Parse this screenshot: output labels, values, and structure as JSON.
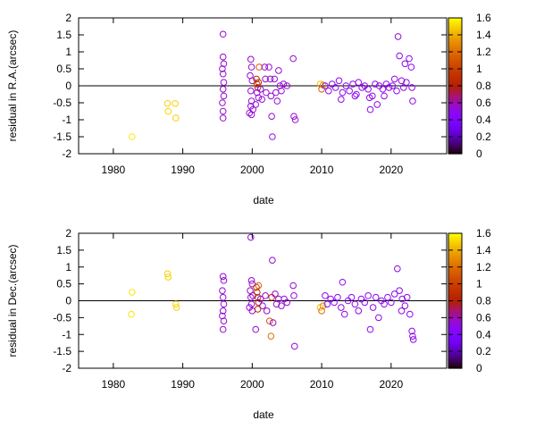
{
  "chart_data": [
    {
      "type": "scatter",
      "xlabel": "date",
      "ylabel": "residual in R.A.(arcsec)",
      "xlim": [
        1975,
        2028
      ],
      "ylim": [
        -2,
        2
      ],
      "xticks": [
        1980,
        1990,
        2000,
        2010,
        2020
      ],
      "yticks": [
        -2,
        -1.5,
        -1,
        -0.5,
        0,
        0.5,
        1,
        1.5,
        2
      ],
      "grid": false,
      "zero_line": true,
      "marker": "open-circle",
      "colorbar": {
        "min": 0,
        "max": 1.6,
        "ticks": [
          0,
          0.2,
          0.4,
          0.6,
          0.8,
          1,
          1.2,
          1.4,
          1.6
        ],
        "colormap": "gnuplot"
      },
      "points": [
        [
          1982.7,
          -1.5,
          1.55
        ],
        [
          1987.8,
          -0.52,
          1.5
        ],
        [
          1987.9,
          -0.75,
          1.5
        ],
        [
          1988.9,
          -0.52,
          1.5
        ],
        [
          1989.0,
          -0.95,
          1.5
        ],
        [
          1995.8,
          1.52,
          0.55
        ],
        [
          1995.8,
          0.85,
          0.55
        ],
        [
          1995.9,
          0.65,
          0.55
        ],
        [
          1995.7,
          0.5,
          0.55
        ],
        [
          1995.8,
          0.35,
          0.55
        ],
        [
          1995.9,
          0.1,
          0.55
        ],
        [
          1995.8,
          -0.1,
          0.55
        ],
        [
          1995.9,
          -0.3,
          0.55
        ],
        [
          1995.7,
          -0.5,
          0.55
        ],
        [
          1995.8,
          -0.75,
          0.55
        ],
        [
          1995.8,
          -0.95,
          0.55
        ],
        [
          1999.8,
          0.78,
          0.55
        ],
        [
          1999.9,
          0.55,
          0.55
        ],
        [
          1999.7,
          0.3,
          0.55
        ],
        [
          2000.0,
          0.15,
          0.55
        ],
        [
          1999.8,
          -0.15,
          0.55
        ],
        [
          1999.9,
          -0.45,
          0.55
        ],
        [
          1999.8,
          -0.6,
          0.55
        ],
        [
          1999.9,
          -0.85,
          0.55
        ],
        [
          2000.1,
          -0.7,
          0.55
        ],
        [
          1999.6,
          -0.8,
          0.55
        ],
        [
          2000.6,
          0.2,
          0.9
        ],
        [
          2000.7,
          0.05,
          0.9
        ],
        [
          2000.8,
          -0.05,
          0.9
        ],
        [
          2000.9,
          0.1,
          0.9
        ],
        [
          2000.7,
          -0.2,
          0.55
        ],
        [
          2000.9,
          -0.35,
          0.55
        ],
        [
          2000.5,
          -0.55,
          0.55
        ],
        [
          2001.0,
          0.55,
          1.15
        ],
        [
          2001.2,
          -0.1,
          0.55
        ],
        [
          2001.4,
          -0.4,
          0.55
        ],
        [
          2001.8,
          0.55,
          0.55
        ],
        [
          2001.9,
          0.2,
          0.55
        ],
        [
          2002.0,
          -0.2,
          0.55
        ],
        [
          2002.4,
          0.55,
          0.55
        ],
        [
          2002.6,
          0.2,
          0.55
        ],
        [
          2002.7,
          -0.3,
          0.55
        ],
        [
          2002.8,
          -0.9,
          0.55
        ],
        [
          2002.9,
          -1.5,
          0.55
        ],
        [
          2003.2,
          0.2,
          0.55
        ],
        [
          2003.4,
          -0.2,
          0.55
        ],
        [
          2003.6,
          -0.45,
          0.55
        ],
        [
          2003.8,
          0.45,
          0.55
        ],
        [
          2004.0,
          0.0,
          0.55
        ],
        [
          2004.2,
          -0.15,
          0.55
        ],
        [
          2004.5,
          0.05,
          0.55
        ],
        [
          2005.0,
          0.0,
          0.55
        ],
        [
          2005.9,
          0.8,
          0.55
        ],
        [
          2006.0,
          -0.9,
          0.55
        ],
        [
          2006.2,
          -1.0,
          0.55
        ],
        [
          2009.8,
          0.05,
          1.45
        ],
        [
          2010.0,
          -0.1,
          1.15
        ],
        [
          2010.2,
          0.02,
          1.3
        ],
        [
          2010.5,
          0.0,
          0.5
        ],
        [
          2011.0,
          -0.15,
          0.5
        ],
        [
          2011.5,
          0.05,
          0.5
        ],
        [
          2012.0,
          -0.05,
          0.5
        ],
        [
          2012.5,
          0.15,
          0.5
        ],
        [
          2013.0,
          -0.2,
          0.5
        ],
        [
          2013.5,
          0.0,
          0.5
        ],
        [
          2014.0,
          -0.15,
          0.5
        ],
        [
          2014.5,
          0.05,
          0.5
        ],
        [
          2015.0,
          -0.25,
          0.5
        ],
        [
          2015.3,
          0.1,
          0.5
        ],
        [
          2015.8,
          -0.05,
          0.5
        ],
        [
          2016.2,
          0.0,
          0.5
        ],
        [
          2016.7,
          -0.1,
          0.5
        ],
        [
          2017.0,
          -0.7,
          0.5
        ],
        [
          2017.3,
          -0.3,
          0.5
        ],
        [
          2017.7,
          0.05,
          0.5
        ],
        [
          2018.0,
          -0.55,
          0.5
        ],
        [
          2018.3,
          0.0,
          0.5
        ],
        [
          2018.8,
          -0.1,
          0.5
        ],
        [
          2019.3,
          0.05,
          0.5
        ],
        [
          2019.7,
          -0.05,
          0.5
        ],
        [
          2020.2,
          0.0,
          0.5
        ],
        [
          2020.5,
          0.2,
          0.5
        ],
        [
          2020.8,
          -0.15,
          0.5
        ],
        [
          2021.0,
          1.45,
          0.5
        ],
        [
          2021.2,
          0.88,
          0.5
        ],
        [
          2021.5,
          0.15,
          0.5
        ],
        [
          2021.8,
          -0.05,
          0.5
        ],
        [
          2022.0,
          0.65,
          0.5
        ],
        [
          2022.2,
          0.1,
          0.5
        ],
        [
          2022.6,
          0.8,
          0.5
        ],
        [
          2022.9,
          0.55,
          0.5
        ],
        [
          2023.0,
          -0.05,
          0.5
        ],
        [
          2023.1,
          -0.45,
          0.5
        ],
        [
          2012.8,
          -0.4,
          0.5
        ],
        [
          2014.8,
          -0.3,
          0.5
        ],
        [
          2016.9,
          -0.35,
          0.5
        ],
        [
          2019.0,
          -0.3,
          0.5
        ]
      ]
    },
    {
      "type": "scatter",
      "xlabel": "date",
      "ylabel": "residual in Dec.(arcsec)",
      "xlim": [
        1975,
        2028
      ],
      "ylim": [
        -2,
        2
      ],
      "xticks": [
        1980,
        1990,
        2000,
        2010,
        2020
      ],
      "yticks": [
        -2,
        -1.5,
        -1,
        -0.5,
        0,
        0.5,
        1,
        1.5,
        2
      ],
      "grid": false,
      "zero_line": true,
      "marker": "open-circle",
      "colorbar": {
        "min": 0,
        "max": 1.6,
        "ticks": [
          0,
          0.2,
          0.4,
          0.6,
          0.8,
          1,
          1.2,
          1.4,
          1.6
        ],
        "colormap": "gnuplot"
      },
      "points": [
        [
          1982.7,
          0.25,
          1.55
        ],
        [
          1982.6,
          -0.4,
          1.55
        ],
        [
          1987.8,
          0.8,
          1.5
        ],
        [
          1987.9,
          0.7,
          1.5
        ],
        [
          1989.0,
          -0.1,
          1.5
        ],
        [
          1989.1,
          -0.2,
          1.5
        ],
        [
          1995.8,
          0.72,
          0.55
        ],
        [
          1995.9,
          0.6,
          0.55
        ],
        [
          1995.7,
          0.3,
          0.55
        ],
        [
          1995.8,
          0.1,
          0.55
        ],
        [
          1995.9,
          -0.1,
          0.55
        ],
        [
          1995.8,
          -0.3,
          0.55
        ],
        [
          1995.7,
          -0.45,
          0.55
        ],
        [
          1995.9,
          -0.6,
          0.55
        ],
        [
          1995.8,
          -0.85,
          0.55
        ],
        [
          1999.8,
          1.88,
          0.55
        ],
        [
          1999.9,
          0.6,
          0.55
        ],
        [
          2000.0,
          0.5,
          0.55
        ],
        [
          1999.7,
          0.3,
          0.55
        ],
        [
          1999.8,
          0.1,
          0.55
        ],
        [
          1999.9,
          -0.1,
          0.55
        ],
        [
          2000.0,
          -0.3,
          0.55
        ],
        [
          2000.1,
          0.15,
          0.55
        ],
        [
          1999.6,
          -0.2,
          0.55
        ],
        [
          2000.6,
          0.4,
          0.9
        ],
        [
          2000.7,
          0.25,
          0.9
        ],
        [
          2000.8,
          0.1,
          0.9
        ],
        [
          2000.9,
          -0.05,
          0.9
        ],
        [
          2000.8,
          -0.25,
          0.9
        ],
        [
          2000.9,
          0.45,
          1.15
        ],
        [
          2000.5,
          -0.85,
          0.55
        ],
        [
          2001.2,
          0.05,
          0.55
        ],
        [
          2001.5,
          -0.15,
          0.55
        ],
        [
          2001.9,
          0.15,
          0.55
        ],
        [
          2002.1,
          -0.3,
          0.55
        ],
        [
          2002.5,
          -0.6,
          1.1
        ],
        [
          2002.8,
          0.1,
          0.9
        ],
        [
          2002.7,
          -1.05,
          1.2
        ],
        [
          2002.9,
          1.2,
          0.55
        ],
        [
          2003.0,
          -0.65,
          0.55
        ],
        [
          2003.3,
          0.2,
          0.55
        ],
        [
          2003.5,
          -0.1,
          0.55
        ],
        [
          2003.8,
          0.05,
          0.55
        ],
        [
          2004.2,
          -0.15,
          0.55
        ],
        [
          2004.6,
          0.05,
          0.55
        ],
        [
          2005.0,
          -0.05,
          0.55
        ],
        [
          2005.9,
          0.45,
          0.55
        ],
        [
          2006.0,
          0.15,
          0.55
        ],
        [
          2006.1,
          -1.35,
          0.55
        ],
        [
          2009.8,
          -0.2,
          1.45
        ],
        [
          2010.0,
          -0.3,
          1.2
        ],
        [
          2010.2,
          -0.15,
          1.3
        ],
        [
          2010.5,
          0.15,
          0.5
        ],
        [
          2010.8,
          -0.1,
          0.5
        ],
        [
          2011.3,
          0.05,
          0.5
        ],
        [
          2011.8,
          -0.05,
          0.5
        ],
        [
          2012.3,
          0.1,
          0.5
        ],
        [
          2012.8,
          -0.2,
          0.5
        ],
        [
          2013.0,
          0.55,
          0.5
        ],
        [
          2013.3,
          -0.4,
          0.5
        ],
        [
          2013.8,
          0.0,
          0.5
        ],
        [
          2014.3,
          0.1,
          0.5
        ],
        [
          2014.8,
          -0.1,
          0.5
        ],
        [
          2015.3,
          -0.3,
          0.5
        ],
        [
          2015.7,
          0.05,
          0.5
        ],
        [
          2016.2,
          -0.05,
          0.5
        ],
        [
          2016.7,
          0.15,
          0.5
        ],
        [
          2017.0,
          -0.85,
          0.5
        ],
        [
          2017.4,
          -0.2,
          0.5
        ],
        [
          2017.8,
          0.1,
          0.5
        ],
        [
          2018.2,
          -0.5,
          0.5
        ],
        [
          2018.6,
          0.0,
          0.5
        ],
        [
          2019.0,
          -0.1,
          0.5
        ],
        [
          2019.5,
          0.1,
          0.5
        ],
        [
          2020.0,
          -0.05,
          0.5
        ],
        [
          2020.5,
          0.2,
          0.5
        ],
        [
          2020.9,
          0.95,
          0.5
        ],
        [
          2021.2,
          0.3,
          0.5
        ],
        [
          2021.6,
          0.05,
          0.5
        ],
        [
          2022.0,
          -0.15,
          0.5
        ],
        [
          2022.3,
          0.1,
          0.5
        ],
        [
          2022.7,
          -0.4,
          0.5
        ],
        [
          2023.0,
          -0.9,
          0.5
        ],
        [
          2023.1,
          -1.05,
          0.5
        ],
        [
          2023.2,
          -1.15,
          0.5
        ],
        [
          2021.5,
          -0.3,
          0.5
        ]
      ]
    }
  ]
}
